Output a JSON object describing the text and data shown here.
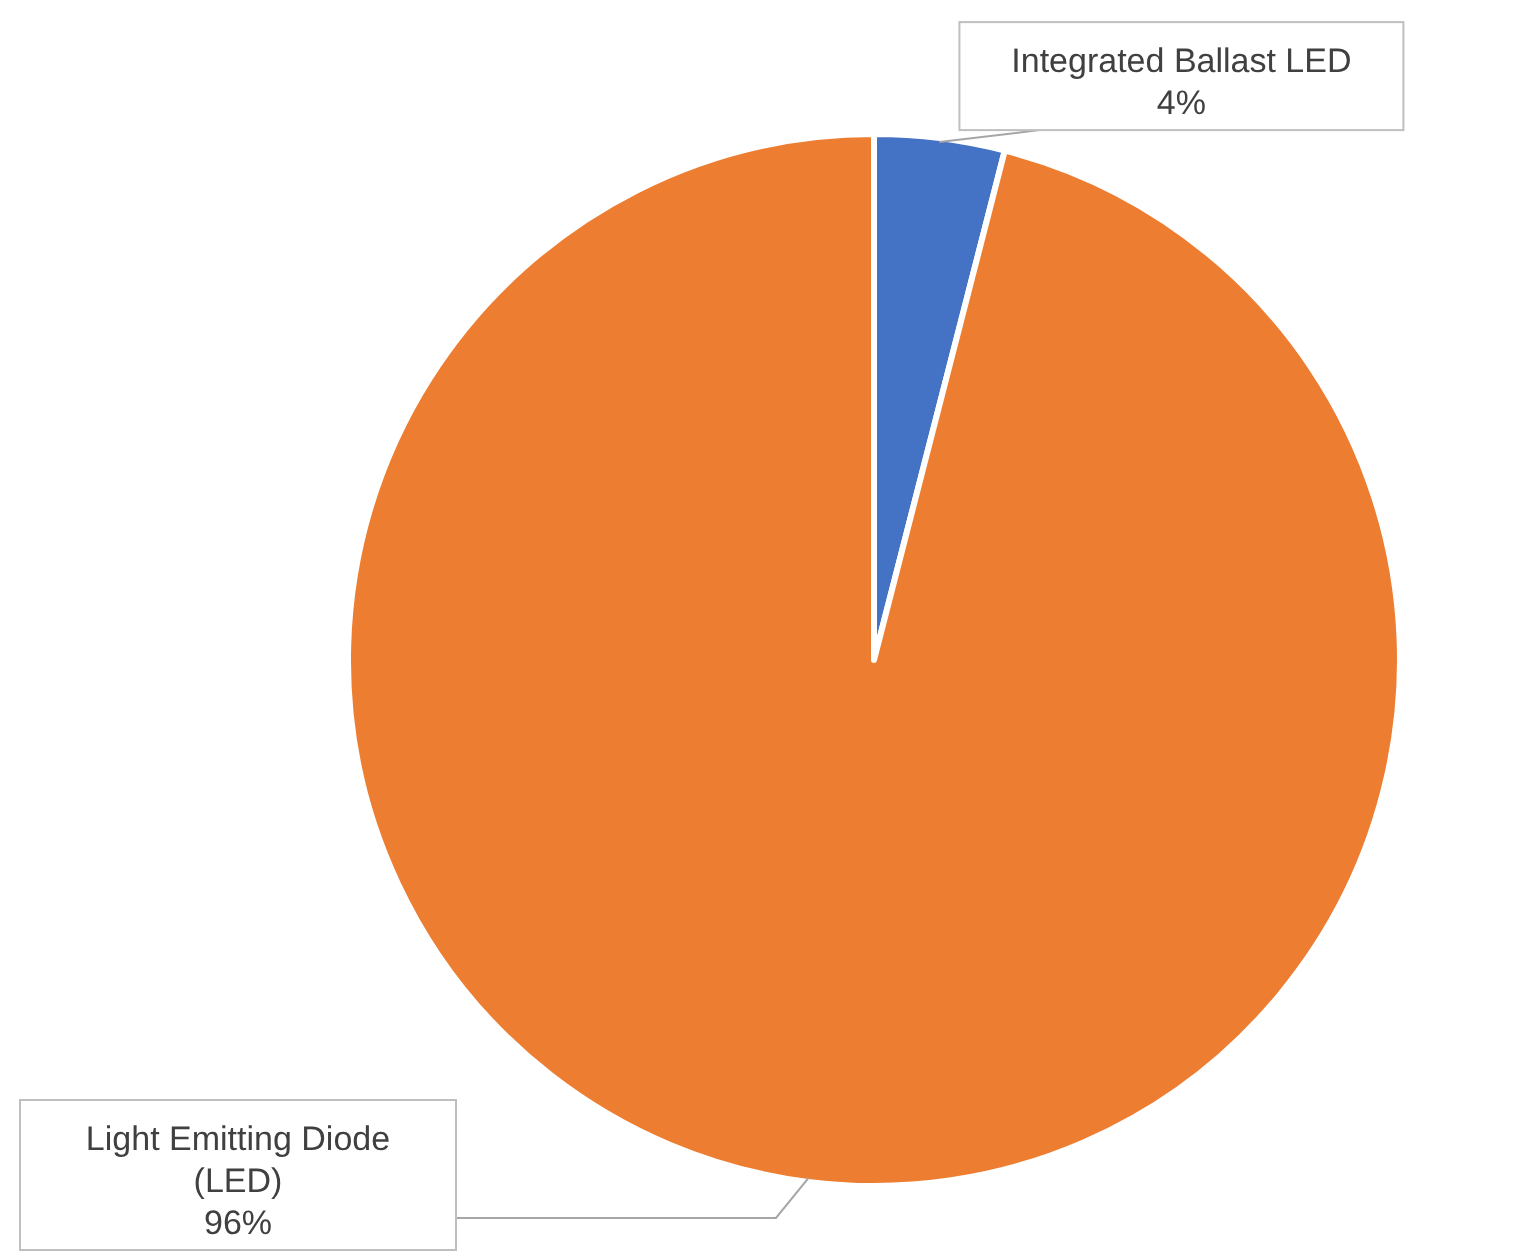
{
  "chart_data": {
    "type": "pie",
    "categories": [
      "Integrated Ballast LED",
      "Light Emitting Diode (LED)"
    ],
    "values": [
      4,
      96
    ],
    "colors": [
      "#4472c4",
      "#ed7d31"
    ],
    "value_labels": [
      "4%",
      "96%"
    ]
  }
}
